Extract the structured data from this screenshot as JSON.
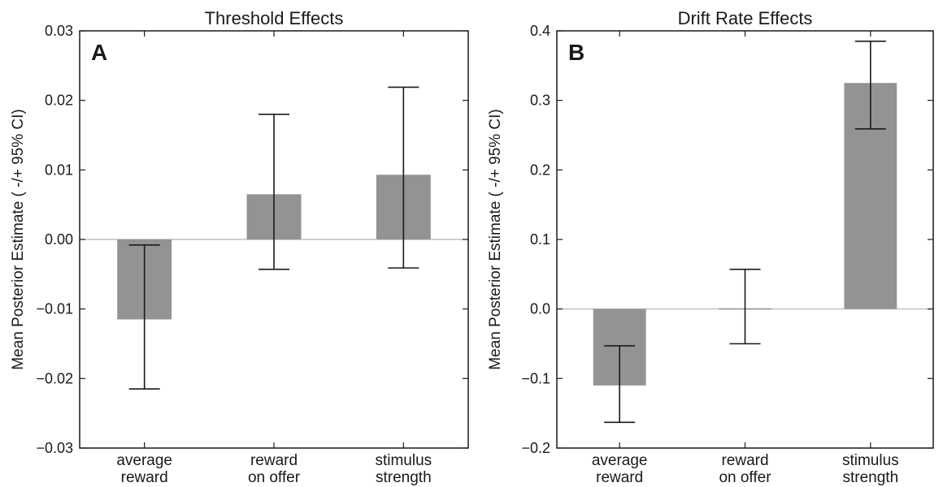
{
  "chart_data": [
    {
      "type": "bar",
      "title": "Threshold Effects",
      "panel_label": "A",
      "ylabel": "Mean Posterior Estimate ( -/+ 95% CI)",
      "xlabel": "",
      "categories": [
        [
          "average",
          "reward"
        ],
        [
          "reward",
          "on offer"
        ],
        [
          "stimulus",
          "strength"
        ]
      ],
      "values": [
        -0.0115,
        0.0065,
        0.0093
      ],
      "ci_low": [
        -0.0215,
        -0.0043,
        -0.0041
      ],
      "ci_high": [
        -0.0008,
        0.018,
        0.0219
      ],
      "ylim": [
        -0.03,
        0.03
      ],
      "yticks": [
        -0.03,
        -0.02,
        -0.01,
        0,
        0.01,
        0.02,
        0.03
      ],
      "ytick_labels": [
        "−0.03",
        "−0.02",
        "−0.01",
        "0.00",
        "0.01",
        "0.02",
        "0.03"
      ],
      "bar_color": "#939393",
      "grid": false
    },
    {
      "type": "bar",
      "title": "Drift Rate Effects",
      "panel_label": "B",
      "ylabel": "Mean Posterior Estimate ( -/+ 95% CI)",
      "xlabel": "",
      "categories": [
        [
          "average",
          "reward"
        ],
        [
          "reward",
          "on offer"
        ],
        [
          "stimulus",
          "strength"
        ]
      ],
      "values": [
        -0.11,
        0.001,
        0.325
      ],
      "ci_low": [
        -0.163,
        -0.05,
        0.259
      ],
      "ci_high": [
        -0.053,
        0.057,
        0.385
      ],
      "ylim": [
        -0.2,
        0.4
      ],
      "yticks": [
        -0.2,
        -0.1,
        0,
        0.1,
        0.2,
        0.3,
        0.4
      ],
      "ytick_labels": [
        "−0.2",
        "−0.1",
        "0.0",
        "0.1",
        "0.2",
        "0.3",
        "0.4"
      ],
      "bar_color": "#939393",
      "grid": false
    }
  ]
}
